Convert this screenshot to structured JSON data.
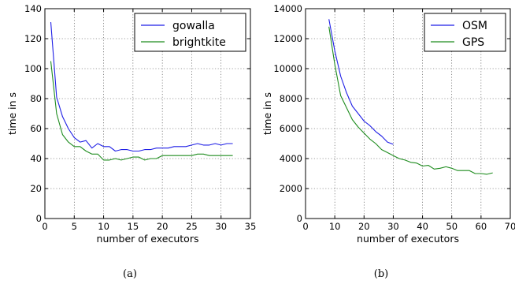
{
  "chart_data": [
    {
      "type": "line",
      "caption": "(a)",
      "xlabel": "number of executors",
      "ylabel": "time in s",
      "xlim": [
        0,
        35
      ],
      "ylim": [
        0,
        140
      ],
      "xticks": [
        0,
        5,
        10,
        15,
        20,
        25,
        30,
        35
      ],
      "yticks": [
        0,
        20,
        40,
        60,
        80,
        100,
        120,
        140
      ],
      "grid": true,
      "legend_position": "top-right",
      "series": [
        {
          "name": "gowalla",
          "color": "#1f1fe6",
          "x": [
            1,
            2,
            3,
            4,
            5,
            6,
            7,
            8,
            9,
            10,
            11,
            12,
            13,
            14,
            15,
            16,
            17,
            18,
            19,
            20,
            21,
            22,
            23,
            24,
            25,
            26,
            27,
            28,
            29,
            30,
            31,
            32
          ],
          "y": [
            131,
            81,
            68,
            60,
            54,
            51,
            52,
            47,
            50,
            48,
            48,
            45,
            46,
            46,
            45,
            45,
            46,
            46,
            47,
            47,
            47,
            48,
            48,
            48,
            49,
            50,
            49,
            49,
            50,
            49,
            50,
            50
          ]
        },
        {
          "name": "brightkite",
          "color": "#1e8c1e",
          "x": [
            1,
            2,
            3,
            4,
            5,
            6,
            7,
            8,
            9,
            10,
            11,
            12,
            13,
            14,
            15,
            16,
            17,
            18,
            19,
            20,
            21,
            22,
            23,
            24,
            25,
            26,
            27,
            28,
            29,
            30,
            31,
            32
          ],
          "y": [
            105,
            70,
            56,
            51,
            48,
            48,
            45,
            43,
            43,
            39,
            39,
            40,
            39,
            40,
            41,
            41,
            39,
            40,
            40,
            42,
            42,
            42,
            42,
            42,
            42,
            43,
            43,
            42,
            42,
            42,
            42,
            42
          ]
        }
      ]
    },
    {
      "type": "line",
      "caption": "(b)",
      "xlabel": "number of executors",
      "ylabel": "time in s",
      "xlim": [
        0,
        70
      ],
      "ylim": [
        0,
        14000
      ],
      "xticks": [
        0,
        10,
        20,
        30,
        40,
        50,
        60,
        70
      ],
      "yticks": [
        0,
        2000,
        4000,
        6000,
        8000,
        10000,
        12000,
        14000
      ],
      "grid": true,
      "legend_position": "top-right",
      "series": [
        {
          "name": "OSM",
          "color": "#1f1fe6",
          "x": [
            8,
            10,
            12,
            14,
            16,
            18,
            20,
            22,
            24,
            26,
            28,
            30
          ],
          "y": [
            13300,
            11200,
            9500,
            8400,
            7500,
            7000,
            6500,
            6200,
            5800,
            5500,
            5100,
            4950
          ]
        },
        {
          "name": "GPS",
          "color": "#1e8c1e",
          "x": [
            8,
            10,
            12,
            14,
            16,
            18,
            20,
            22,
            24,
            26,
            28,
            30,
            32,
            34,
            36,
            38,
            40,
            42,
            44,
            46,
            48,
            50,
            52,
            54,
            56,
            58,
            60,
            62,
            64
          ],
          "y": [
            12800,
            10300,
            8200,
            7400,
            6600,
            6100,
            5700,
            5300,
            5000,
            4600,
            4400,
            4200,
            4000,
            3900,
            3750,
            3700,
            3500,
            3550,
            3300,
            3350,
            3450,
            3350,
            3200,
            3200,
            3200,
            3000,
            3000,
            2950,
            3050
          ]
        }
      ]
    }
  ]
}
